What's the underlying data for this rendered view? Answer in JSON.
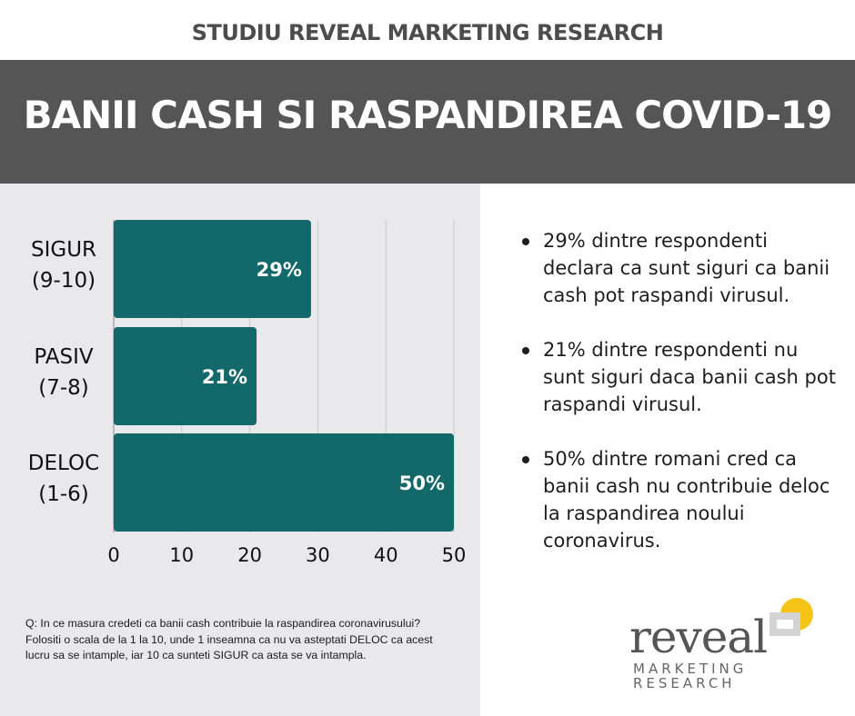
{
  "header": {
    "top_title": "STUDIU REVEAL MARKETING RESEARCH",
    "banner_title": "BANII CASH SI RASPANDIREA COVID-19"
  },
  "colors": {
    "banner": "#555555",
    "bar": "#13686a",
    "panel": "#e9e9ec",
    "logo_yellow": "#f5c418"
  },
  "chart_data": {
    "type": "bar",
    "orientation": "horizontal",
    "categories": [
      [
        "SIGUR",
        "(9-10)"
      ],
      [
        "PASIV",
        "(7-8)"
      ],
      [
        "DELOC",
        "(1-6)"
      ]
    ],
    "values": [
      29,
      21,
      50
    ],
    "data_labels": [
      "29%",
      "21%",
      "50%"
    ],
    "xlim": [
      0,
      50
    ],
    "xticks": [
      "0",
      "10",
      "20",
      "30",
      "40",
      "50"
    ],
    "grid": true
  },
  "question": "Q: In ce masura credeti ca banii cash contribuie la raspandirea coronavirusului? Folositi o scala de la 1 la 10, unde 1 inseamna ca nu va asteptati DELOC ca acest lucru sa se intample, iar 10 ca sunteti SIGUR ca asta se va intampla.",
  "bullets": [
    "29% dintre respondenti declara ca sunt siguri ca banii cash pot raspandi virusul.",
    "21% dintre respondenti nu sunt siguri daca banii cash pot raspandi virusul.",
    "50% dintre romani cred ca banii cash nu contribuie deloc la raspandirea noului coronavirus."
  ],
  "logo": {
    "word": "reveal",
    "line1": "MARKETING",
    "line2": "RESEARCH"
  }
}
